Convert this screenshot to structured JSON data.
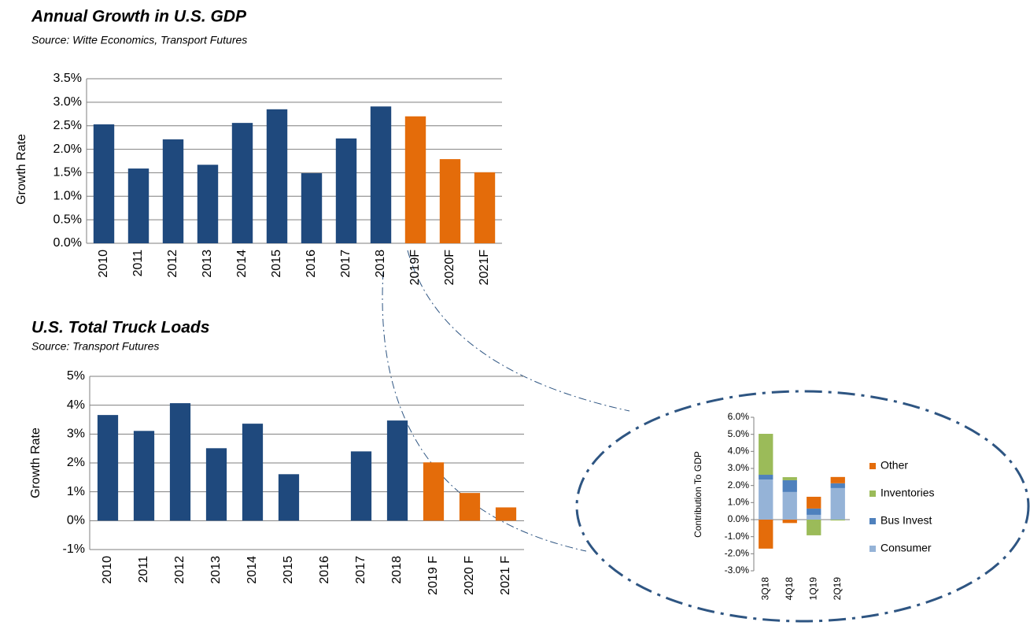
{
  "chart_data": [
    {
      "type": "bar",
      "title": "Annual Growth in U.S. GDP",
      "subtitle": "Source: Witte Economics, Transport Futures",
      "y_label": "Growth Rate",
      "categories": [
        "2010",
        "2011",
        "2012",
        "2013",
        "2014",
        "2015",
        "2016",
        "2017",
        "2018",
        "2019F",
        "2020F",
        "2021F"
      ],
      "values": [
        2.53,
        1.59,
        2.21,
        1.67,
        2.56,
        2.85,
        1.49,
        2.23,
        2.91,
        2.7,
        1.79,
        1.51
      ],
      "colors": [
        "#1f497d",
        "#1f497d",
        "#1f497d",
        "#1f497d",
        "#1f497d",
        "#1f497d",
        "#1f497d",
        "#1f497d",
        "#1f497d",
        "#e46c0a",
        "#e46c0a",
        "#e46c0a"
      ],
      "ylim": [
        0,
        3.5
      ],
      "yticks": [
        {
          "value": 0,
          "label": "0.0%"
        },
        {
          "value": 0.5,
          "label": "0.5%"
        },
        {
          "value": 1,
          "label": "1.0%"
        },
        {
          "value": 1.5,
          "label": "1.5%"
        },
        {
          "value": 2,
          "label": "2.0%"
        },
        {
          "value": 2.5,
          "label": "2.5%"
        },
        {
          "value": 3,
          "label": "3.0%"
        },
        {
          "value": 3.5,
          "label": "3.5%"
        }
      ],
      "grid": true
    },
    {
      "type": "bar",
      "title": "U.S. Total Truck Loads",
      "subtitle": "Source: Transport Futures",
      "y_label": "Growth Rate",
      "categories": [
        "2010",
        "2011",
        "2012",
        "2013",
        "2014",
        "2015",
        "2016",
        "2017",
        "2018",
        "2019 F",
        "2020 F",
        "2021 F"
      ],
      "values": [
        3.66,
        3.11,
        4.07,
        2.51,
        3.36,
        1.61,
        null,
        2.4,
        3.47,
        2.02,
        0.96,
        0.46
      ],
      "colors": [
        "#1f497d",
        "#1f497d",
        "#1f497d",
        "#1f497d",
        "#1f497d",
        "#1f497d",
        "#1f497d",
        "#1f497d",
        "#1f497d",
        "#e46c0a",
        "#e46c0a",
        "#e46c0a"
      ],
      "ylim": [
        -1,
        5
      ],
      "yticks": [
        {
          "value": -1,
          "label": "-1%"
        },
        {
          "value": 0,
          "label": "0%"
        },
        {
          "value": 1,
          "label": "1%"
        },
        {
          "value": 2,
          "label": "2%"
        },
        {
          "value": 3,
          "label": "3%"
        },
        {
          "value": 4,
          "label": "4%"
        },
        {
          "value": 5,
          "label": "5%"
        }
      ],
      "grid": true
    },
    {
      "type": "stacked_bar",
      "y_label": "Contribution To GDP",
      "categories": [
        "3Q18",
        "4Q18",
        "1Q19",
        "2Q19"
      ],
      "series": [
        {
          "name": "Consumer",
          "color": "#95b3d7",
          "values": [
            2.35,
            1.62,
            0.28,
            1.85
          ]
        },
        {
          "name": "Bus Invest",
          "color": "#4f81bd",
          "values": [
            0.28,
            0.69,
            0.37,
            0.28
          ]
        },
        {
          "name": "Inventories",
          "color": "#9bbb59",
          "values": [
            2.4,
            0.18,
            -0.92,
            -0.05
          ]
        },
        {
          "name": "Other",
          "color": "#e46c0a",
          "values": [
            -1.7,
            -0.2,
            0.69,
            0.37
          ]
        }
      ],
      "ylim": [
        -3,
        6
      ],
      "yticks": [
        {
          "value": -3,
          "label": "-3.0%"
        },
        {
          "value": -2,
          "label": "-2.0%"
        },
        {
          "value": -1,
          "label": "-1.0%"
        },
        {
          "value": 0,
          "label": "0.0%"
        },
        {
          "value": 1,
          "label": "1.0%"
        },
        {
          "value": 2,
          "label": "2.0%"
        },
        {
          "value": 3,
          "label": "3.0%"
        },
        {
          "value": 4,
          "label": "4.0%"
        },
        {
          "value": 5,
          "label": "5.0%"
        },
        {
          "value": 6,
          "label": "6.0%"
        }
      ],
      "grid": false
    }
  ]
}
